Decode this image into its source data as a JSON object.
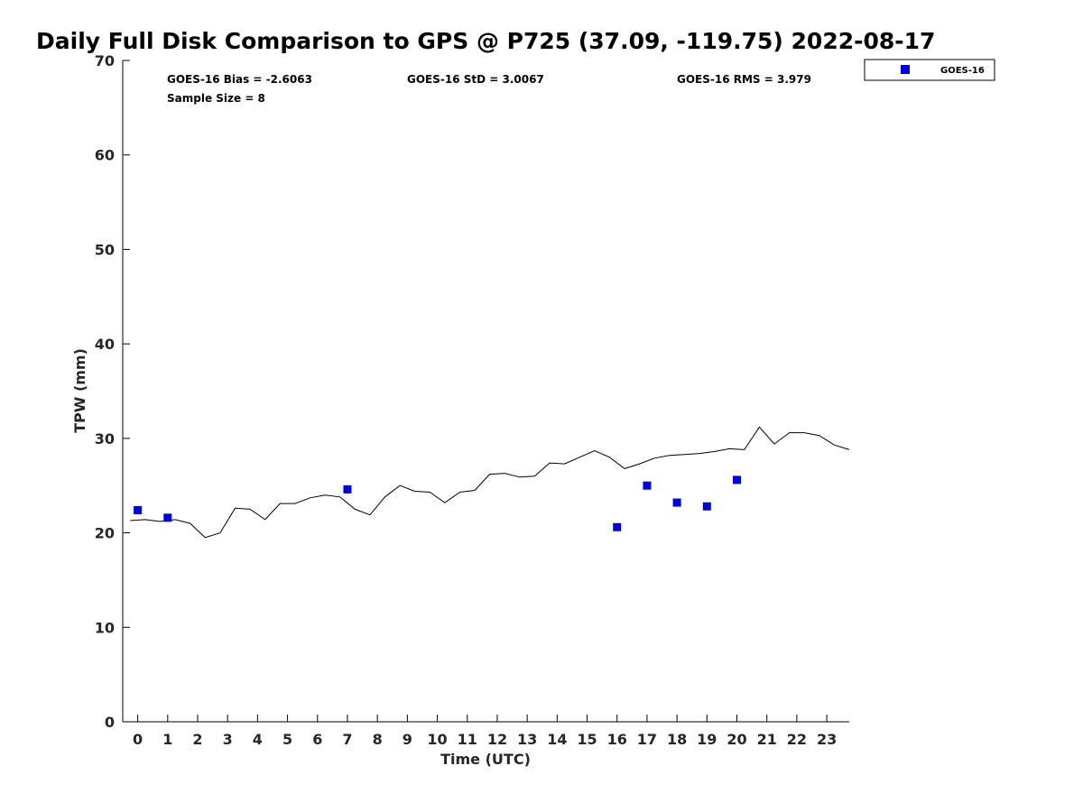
{
  "chart_data": {
    "type": "scatter",
    "title": "Daily Full Disk Comparison to GPS @ P725 (37.09, -119.75) 2022-08-17",
    "xlabel": "Time (UTC)",
    "ylabel": "TPW (mm)",
    "xlim": [
      -0.5,
      23.75
    ],
    "ylim": [
      0,
      70
    ],
    "xticks": [
      0,
      1,
      2,
      3,
      4,
      5,
      6,
      7,
      8,
      9,
      10,
      11,
      12,
      13,
      14,
      15,
      16,
      17,
      18,
      19,
      20,
      21,
      22,
      23
    ],
    "yticks": [
      0,
      10,
      20,
      30,
      40,
      50,
      60,
      70
    ],
    "grid": false,
    "legend_position": "top-right",
    "stats": {
      "bias": "GOES-16 Bias = -2.6063",
      "std": "GOES-16 StD = 3.0067",
      "rms": "GOES-16 RMS = 3.979",
      "sample": "Sample Size = 8"
    },
    "series": [
      {
        "name": "",
        "kind": "line",
        "color": "#000000",
        "x": [
          -0.25,
          0.25,
          0.75,
          1.25,
          1.75,
          2.25,
          2.75,
          3.25,
          3.75,
          4.25,
          4.75,
          5.25,
          5.75,
          6.25,
          6.75,
          7.25,
          7.75,
          8.25,
          8.75,
          9.25,
          9.75,
          10.25,
          10.75,
          11.25,
          11.75,
          12.25,
          12.75,
          13.25,
          13.75,
          14.25,
          14.75,
          15.25,
          15.75,
          16.25,
          16.75,
          17.25,
          17.75,
          18.25,
          18.75,
          19.25,
          19.75,
          20.25,
          20.75,
          21.25,
          21.75,
          22.25,
          22.75,
          23.25,
          23.75
        ],
        "y": [
          21.3,
          21.4,
          21.2,
          21.4,
          21.0,
          19.5,
          20.0,
          22.6,
          22.5,
          21.4,
          23.1,
          23.1,
          23.7,
          24.0,
          23.8,
          22.5,
          21.9,
          23.8,
          25.0,
          24.4,
          24.3,
          23.2,
          24.3,
          24.5,
          26.2,
          26.3,
          25.9,
          26.0,
          27.4,
          27.3,
          28.0,
          28.7,
          28.0,
          26.8,
          27.3,
          27.9,
          28.2,
          28.3,
          28.4,
          28.6,
          28.9,
          28.8,
          31.2,
          29.4,
          30.6,
          30.6,
          30.3,
          29.3,
          28.8
        ]
      },
      {
        "name": "GOES-16",
        "kind": "scatter",
        "color": "#0000dd",
        "x": [
          0,
          1,
          7,
          16,
          17,
          18,
          19,
          20
        ],
        "y": [
          22.4,
          21.6,
          24.6,
          20.6,
          25.0,
          23.2,
          22.8,
          25.6
        ]
      }
    ]
  }
}
